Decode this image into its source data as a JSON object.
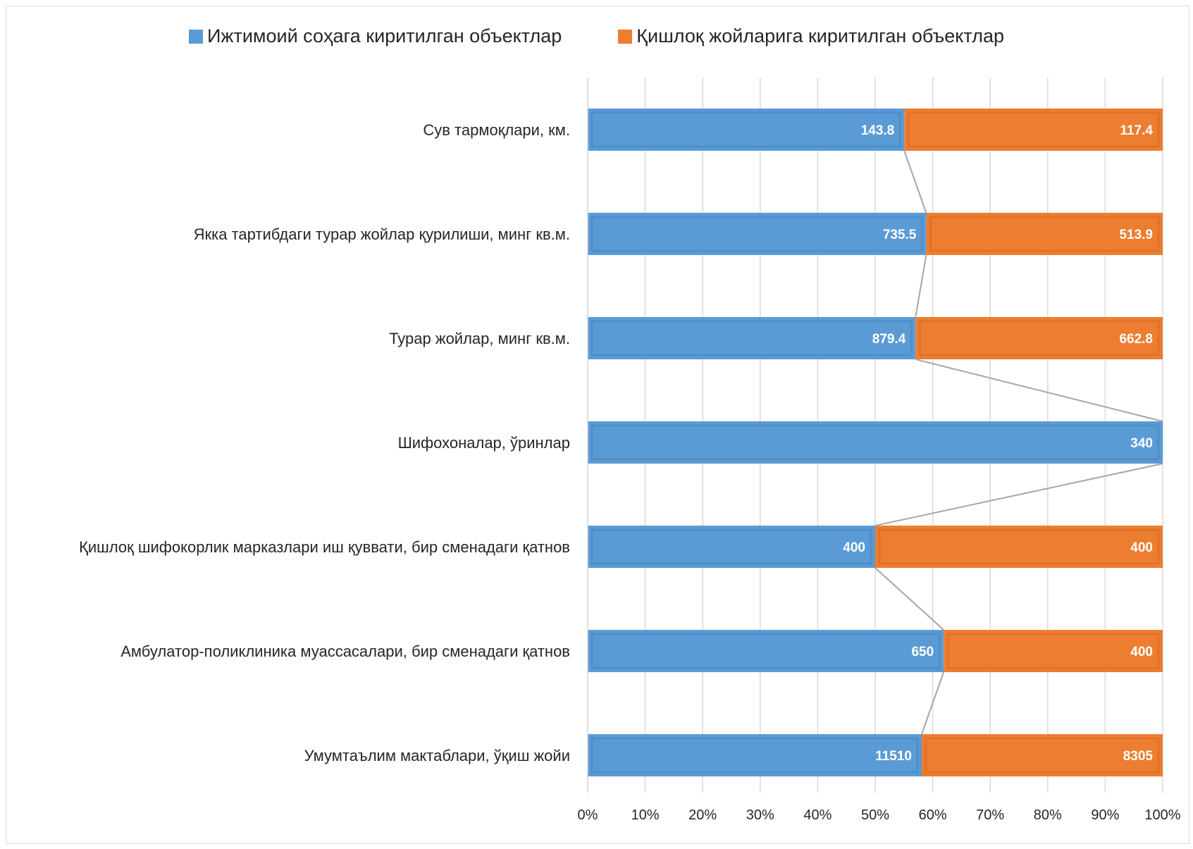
{
  "chart_data": {
    "type": "bar",
    "orientation": "horizontal",
    "stacking": "percent",
    "categories": [
      "Сув тармоқлари, км.",
      "Якка тартибдаги турар жойлар қурилиши, минг кв.м.",
      "Турар жойлар, минг кв.м.",
      "Шифохоналар, ўринлар",
      "Қишлоқ шифокорлик марказлари иш қуввати, бир сменадаги қатнов",
      "Амбулатор-поликлиника муассасалари,  бир сменадаги қатнов",
      "Умумтаълим мактаблари, ўқиш жойи"
    ],
    "series": [
      {
        "name": "Ижтимоий соҳага киритилган объектлар",
        "color": "#5b9bd5",
        "values": [
          143.8,
          735.5,
          879.4,
          340,
          400,
          650,
          11510
        ]
      },
      {
        "name": "Қишлоқ жойларига киритилган объектлар",
        "color": "#ed7d31",
        "values": [
          117.4,
          513.9,
          662.8,
          0,
          400,
          400,
          8305
        ]
      }
    ],
    "data_labels": [
      [
        "143.8",
        "735.5",
        "879.4",
        "340",
        "400",
        "650",
        "11510"
      ],
      [
        "117.4",
        "513.9",
        "662.8",
        "",
        "400",
        "400",
        "8305"
      ]
    ],
    "x_ticks": [
      "0%",
      "10%",
      "20%",
      "30%",
      "40%",
      "50%",
      "60%",
      "70%",
      "80%",
      "90%",
      "100%"
    ],
    "xlim": [
      0,
      100
    ],
    "series_lines": true,
    "grid": "vertical",
    "legend_position": "top"
  }
}
